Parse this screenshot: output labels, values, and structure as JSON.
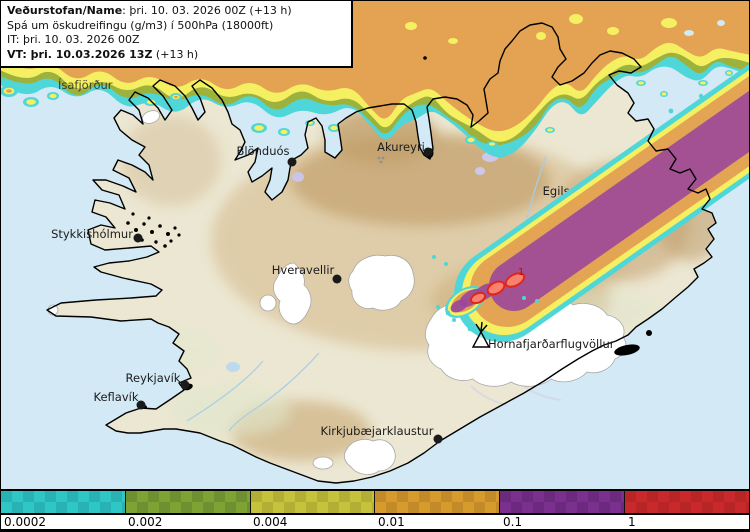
{
  "header": {
    "line1_bold": "Veðurstofan/Name",
    "line1_rest": ": þri. 10. 03. 2026 00Z (+13 h)",
    "line2": "Spá um öskudreifingu (g/m3) í 500hPa (18000ft)",
    "line3": "IT: þri. 10. 03. 2026 00Z",
    "line4_bold": "VT: þri. 10.03.2026 13Z",
    "line4_rest": " (+13 h)"
  },
  "map": {
    "places": [
      {
        "name": "Ísafjörður"
      },
      {
        "name": "Blönduós"
      },
      {
        "name": "Akureyri"
      },
      {
        "name": "Egilsstaðaflugvöllur"
      },
      {
        "name": "Stykkishólmur"
      },
      {
        "name": "Hveravellir"
      },
      {
        "name": "Reykjavík"
      },
      {
        "name": "Keflavík"
      },
      {
        "name": "Kirkjubæjarklaustur"
      },
      {
        "name": "Hornafjarðarflugvöllur"
      }
    ],
    "contour_max_label": "1",
    "icons": [
      "volcano-icon",
      "settlement-icon"
    ],
    "sea_color": "#d3e9f5",
    "land_color": "#ece7d2",
    "ash_colors": {
      "trace_cyan": "#4ed6d8",
      "green": "#9cb23d",
      "yellow": "#f5ef62",
      "orange": "#e2a052",
      "purple": "#9b4899",
      "extreme_fill": "#f9826f",
      "extreme_edge": "#e0261c"
    }
  },
  "legend": {
    "items": [
      {
        "label": "0.0002",
        "color": "#2fc6c6",
        "color_dark": "#28b2b4"
      },
      {
        "label": "0.002",
        "color": "#7ea233",
        "color_dark": "#6f9030"
      },
      {
        "label": "0.004",
        "color": "#c6c23b",
        "color_dark": "#b3af35"
      },
      {
        "label": "0.01",
        "color": "#d69a2d",
        "color_dark": "#c28a28"
      },
      {
        "label": "0.1",
        "color": "#7b2f8e",
        "color_dark": "#6c2a7e"
      },
      {
        "label": "1",
        "color": "#c9292b",
        "color_dark": "#b82527"
      }
    ]
  }
}
